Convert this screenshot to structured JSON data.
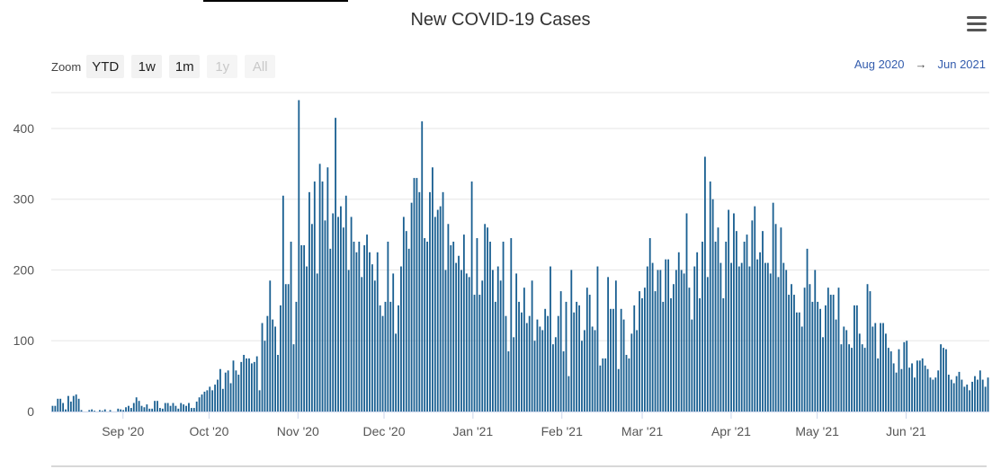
{
  "title": "New COVID-19 Cases",
  "menu_icon": "hamburger-menu-icon",
  "zoom": {
    "label": "Zoom",
    "buttons": [
      {
        "label": "YTD",
        "enabled": true
      },
      {
        "label": "1w",
        "enabled": true
      },
      {
        "label": "1m",
        "enabled": true
      },
      {
        "label": "1y",
        "enabled": false
      },
      {
        "label": "All",
        "enabled": false
      }
    ]
  },
  "range": {
    "from": "Aug 2020",
    "arrow": "→",
    "to": "Jun 2021"
  },
  "colors": {
    "bar": "#195f91",
    "grid": "#e6e6e6",
    "axis": "#ccd6eb"
  },
  "chart_data": {
    "type": "bar",
    "title": "New COVID-19 Cases",
    "x_start": "2020-08-07",
    "x_end": "2021-06-30",
    "ylim": [
      0,
      450
    ],
    "y_ticks": [
      0,
      100,
      200,
      300,
      400
    ],
    "x_ticks": [
      {
        "label": "Sep '20",
        "date": "2020-09-01"
      },
      {
        "label": "Oct '20",
        "date": "2020-10-01"
      },
      {
        "label": "Nov '20",
        "date": "2020-11-01"
      },
      {
        "label": "Dec '20",
        "date": "2020-12-01"
      },
      {
        "label": "Jan '21",
        "date": "2021-01-01"
      },
      {
        "label": "Feb '21",
        "date": "2021-02-01"
      },
      {
        "label": "Mar '21",
        "date": "2021-03-01"
      },
      {
        "label": "Apr '21",
        "date": "2021-04-01"
      },
      {
        "label": "May '21",
        "date": "2021-05-01"
      },
      {
        "label": "Jun '21",
        "date": "2021-06-01"
      }
    ],
    "values": [
      8,
      8,
      18,
      18,
      12,
      3,
      22,
      14,
      22,
      24,
      18,
      2,
      0,
      0,
      2,
      3,
      1,
      0,
      2,
      1,
      3,
      0,
      2,
      0,
      0,
      4,
      3,
      2,
      6,
      8,
      5,
      12,
      20,
      15,
      8,
      6,
      10,
      4,
      4,
      15,
      15,
      5,
      4,
      12,
      12,
      8,
      12,
      8,
      4,
      12,
      10,
      8,
      12,
      5,
      5,
      14,
      20,
      24,
      28,
      30,
      35,
      30,
      38,
      45,
      60,
      32,
      55,
      58,
      40,
      72,
      58,
      52,
      70,
      80,
      75,
      75,
      68,
      70,
      78,
      30,
      125,
      100,
      135,
      185,
      130,
      120,
      80,
      150,
      305,
      180,
      180,
      240,
      95,
      155,
      440,
      235,
      235,
      205,
      310,
      265,
      325,
      195,
      350,
      325,
      270,
      345,
      230,
      280,
      415,
      275,
      290,
      260,
      305,
      200,
      275,
      240,
      225,
      240,
      190,
      235,
      250,
      225,
      208,
      185,
      225,
      150,
      135,
      155,
      240,
      155,
      195,
      110,
      150,
      205,
      275,
      255,
      230,
      295,
      330,
      330,
      310,
      410,
      245,
      240,
      310,
      345,
      275,
      285,
      290,
      310,
      200,
      265,
      235,
      240,
      210,
      220,
      200,
      250,
      195,
      190,
      325,
      165,
      245,
      165,
      185,
      265,
      260,
      240,
      200,
      155,
      205,
      185,
      240,
      135,
      85,
      245,
      105,
      195,
      155,
      140,
      175,
      125,
      135,
      185,
      100,
      130,
      120,
      115,
      145,
      135,
      205,
      95,
      105,
      135,
      170,
      85,
      155,
      50,
      200,
      140,
      155,
      150,
      100,
      115,
      175,
      165,
      120,
      115,
      205,
      65,
      75,
      75,
      190,
      145,
      145,
      185,
      60,
      145,
      130,
      80,
      75,
      110,
      150,
      115,
      170,
      160,
      175,
      205,
      245,
      210,
      170,
      200,
      200,
      155,
      215,
      215,
      160,
      180,
      200,
      225,
      200,
      195,
      280,
      175,
      130,
      205,
      225,
      160,
      240,
      360,
      190,
      325,
      300,
      240,
      260,
      210,
      160,
      240,
      285,
      210,
      280,
      255,
      205,
      210,
      240,
      250,
      205,
      270,
      290,
      215,
      225,
      255,
      210,
      210,
      195,
      295,
      265,
      190,
      260,
      210,
      200,
      165,
      180,
      165,
      140,
      140,
      120,
      175,
      230,
      180,
      155,
      200,
      155,
      145,
      105,
      150,
      175,
      165,
      165,
      130,
      175,
      95,
      120,
      115,
      95,
      90,
      150,
      150,
      110,
      95,
      90,
      180,
      170,
      120,
      125,
      75,
      125,
      125,
      110,
      90,
      85,
      68,
      55,
      88,
      60,
      98,
      100,
      62,
      68,
      48,
      72,
      72,
      75,
      65,
      60,
      48,
      45,
      48,
      58,
      95,
      90,
      88,
      52,
      45,
      40,
      50,
      56,
      45,
      35,
      38,
      30,
      42,
      50,
      45,
      58,
      45,
      35,
      48
    ]
  }
}
